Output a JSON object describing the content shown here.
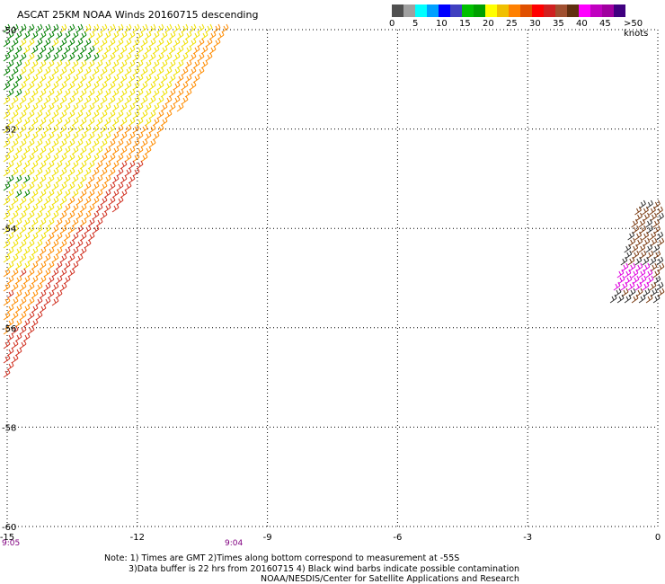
{
  "title": "ASCAT 25KM NOAA Winds 20160715 descending",
  "colorbar": {
    "colors": [
      "#505050",
      "#a0a0a0",
      "#00ffff",
      "#00a0ff",
      "#0000ff",
      "#4040c0",
      "#00c000",
      "#00a000",
      "#ffff00",
      "#f0c000",
      "#ff8000",
      "#e05000",
      "#ff0000",
      "#d02020",
      "#a05030",
      "#603010",
      "#ff00ff",
      "#c000c0",
      "#a000a0",
      "#400080"
    ],
    "labels": [
      "0",
      "5",
      "10",
      "15",
      "20",
      "25",
      "30",
      "35",
      "40",
      "45",
      ">50 knots"
    ]
  },
  "axes": {
    "x_ticks": [
      "-15",
      "-12",
      "-9",
      "-6",
      "-3",
      "0"
    ],
    "y_ticks": [
      "-50",
      "-52",
      "-54",
      "-56",
      "-58",
      "-60"
    ],
    "xlim": [
      -15,
      0
    ],
    "ylim": [
      -60,
      -50
    ],
    "grid": true
  },
  "times": [
    "9:05",
    "9:04"
  ],
  "notes": {
    "line1": "Note: 1) Times are GMT 2)Times along bottom correspond to measurement at -55S",
    "line2": "3)Data buffer is 22 hrs from 20160715 4) Black wind barbs indicate possible contamination",
    "line3": "NOAA/NESDIS/Center for Satellite Applications and Research"
  },
  "wind_colors": {
    "green": "#008000",
    "yellow": "#f0e000",
    "orange": "#ff8c00",
    "red": "#d03020",
    "brown": "#7a3a10",
    "magenta": "#e000e0",
    "dark": "#303030"
  }
}
